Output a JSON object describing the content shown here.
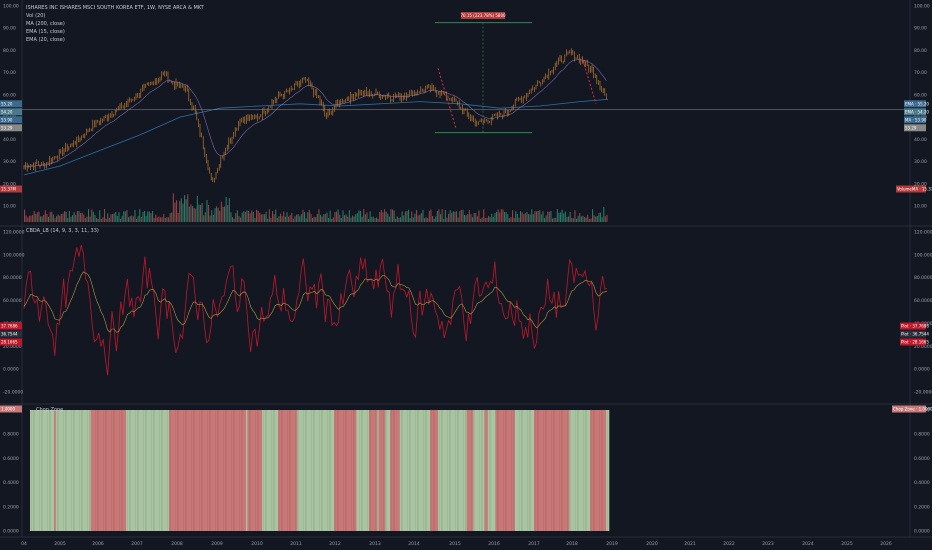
{
  "chart": {
    "title": "ISHARES INC ISHARES MSCI SOUTH KOREA ETF, 1W, NYSE ARCA & MKT",
    "legend": [
      "Vol (20)",
      "MA (200, close)",
      "EMA (15, close)",
      "EMA (20, close)"
    ],
    "measure_label": "70.15 (223.78%) 5800",
    "price_tags_left": [
      "55.20",
      "54.20",
      "53.90",
      "53.29"
    ],
    "price_tags_right": [
      "EMA · 55.20",
      "EMA · 54.20",
      "MA · 53.90",
      "53.29"
    ],
    "volume_tag_left": "15.37M",
    "volume_tag_right": "VolumeMA · 15.37M",
    "price_axis": [
      "100.00",
      "90.00",
      "80.00",
      "70.00",
      "60.00",
      "50.00",
      "40.00",
      "30.00",
      "20.00",
      "10.00"
    ],
    "price_axis_right": [
      "100.00",
      "90.00",
      "80.00",
      "70.00",
      "60.00",
      "50.00",
      "40.00",
      "30.00",
      "20.00",
      "10.00"
    ],
    "colors": {
      "background": "#131722",
      "candle": "#d9882f",
      "ma200": "#2e6fa7",
      "ema": "#c7903a",
      "volume_up": "#2b8a72",
      "volume_down": "#a84b4a",
      "osc": "#c0182a",
      "osc_avg": "#b49a45",
      "zone_red": "#c97777",
      "zone_green": "#a8c4a0",
      "measure": "#2a9d5a"
    }
  },
  "osc_pane": {
    "title": "CBDA_LB (14, 9, 3, 3, 11, 33)",
    "axis": [
      "120.0000",
      "100.0000",
      "80.0000",
      "60.0000",
      "40.0000",
      "20.0000",
      "0.0000",
      "-20.0000"
    ],
    "axis_right": [
      "120.0000",
      "100.0000",
      "80.0000",
      "60.0000",
      "40.0000",
      "20.0000",
      "0.0000",
      "-20.0000"
    ],
    "tags_left": [
      "37.7686",
      "36.7544",
      "28.1665"
    ],
    "tags_right": [
      "Plot · 37.7686",
      "Plot · 36.7544",
      "Plot · 28.1665"
    ]
  },
  "zone_pane": {
    "title": "Chop Zone",
    "tag_left": "1.0000",
    "tag_right": "Chop Zone · 1.0000",
    "axis": [
      "1.0000",
      "0.8000",
      "0.6000",
      "0.4000",
      "0.2000",
      "0.0000"
    ],
    "axis_right": [
      "1.0000",
      "0.8000",
      "0.6000",
      "0.4000",
      "0.2000",
      "0.0000"
    ]
  },
  "time_axis": [
    "04",
    "2005",
    "2006",
    "2007",
    "2008",
    "2009",
    "2010",
    "2011",
    "2012",
    "2013",
    "2014",
    "2015",
    "2016",
    "2017",
    "2018",
    "2019",
    "2020",
    "2021",
    "2022",
    "2023",
    "2024",
    "2025",
    "2026"
  ]
}
